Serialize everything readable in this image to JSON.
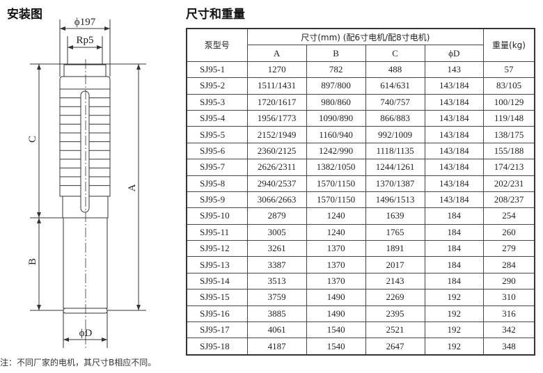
{
  "diagram": {
    "title": "安装图",
    "outlet_diameter": "ϕ197",
    "thread": "Rp5",
    "label_c": "C",
    "label_b": "B",
    "label_a": "A",
    "motor_diameter": "ϕD",
    "note": "注：不同厂家的电机，其尺寸B相应不同。"
  },
  "table": {
    "title": "尺寸和重量",
    "col_model": "泵型号",
    "col_dims": "尺寸(mm) (配6寸电机/配8寸电机)",
    "col_weight": "重量(kg)",
    "sub_cols": [
      "A",
      "B",
      "C",
      "ϕD"
    ],
    "rows": [
      [
        "SJ95-1",
        "1270",
        "782",
        "488",
        "143",
        "57"
      ],
      [
        "SJ95-2",
        "1511/1431",
        "897/800",
        "614/631",
        "143/184",
        "83/105"
      ],
      [
        "SJ95-3",
        "1720/1617",
        "980/860",
        "740/757",
        "143/184",
        "100/129"
      ],
      [
        "SJ95-4",
        "1956/1773",
        "1090/890",
        "866/883",
        "143/184",
        "119/148"
      ],
      [
        "SJ95-5",
        "2152/1949",
        "1160/940",
        "992/1009",
        "143/184",
        "138/175"
      ],
      [
        "SJ95-6",
        "2360/2125",
        "1242/990",
        "1118/1135",
        "143/184",
        "155/188"
      ],
      [
        "SJ95-7",
        "2626/2311",
        "1382/1050",
        "1244/1261",
        "143/184",
        "174/213"
      ],
      [
        "SJ95-8",
        "2940/2537",
        "1570/1150",
        "1370/1387",
        "143/184",
        "202/231"
      ],
      [
        "SJ95-9",
        "3066/2663",
        "1570/1150",
        "1496/1513",
        "143/184",
        "208/237"
      ],
      [
        "SJ95-10",
        "2879",
        "1240",
        "1639",
        "184",
        "254"
      ],
      [
        "SJ95-11",
        "3005",
        "1240",
        "1765",
        "184",
        "260"
      ],
      [
        "SJ95-12",
        "3261",
        "1370",
        "1891",
        "184",
        "279"
      ],
      [
        "SJ95-13",
        "3387",
        "1370",
        "2017",
        "184",
        "284"
      ],
      [
        "SJ95-14",
        "3513",
        "1370",
        "2143",
        "184",
        "290"
      ],
      [
        "SJ95-15",
        "3759",
        "1490",
        "2269",
        "192",
        "310"
      ],
      [
        "SJ95-16",
        "3885",
        "1490",
        "2395",
        "192",
        "316"
      ],
      [
        "SJ95-17",
        "4061",
        "1540",
        "2521",
        "192",
        "342"
      ],
      [
        "SJ95-18",
        "4187",
        "1540",
        "2647",
        "192",
        "348"
      ]
    ]
  }
}
